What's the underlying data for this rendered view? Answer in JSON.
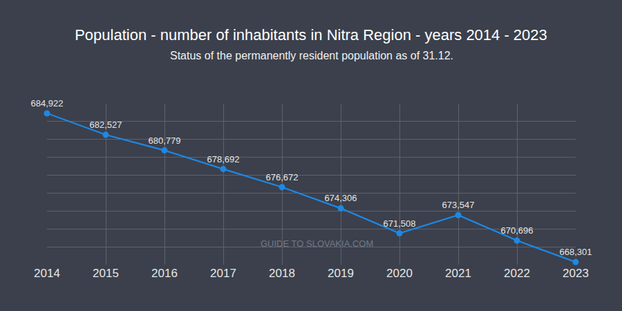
{
  "chart_data": {
    "type": "line",
    "title": "Population - number of inhabitants in Nitra Region - years 2014 - 2023",
    "subtitle": "Status of the permanently resident population as of 31.12.",
    "annotations": [
      "GUIDE TO SLOVAKIA.COM"
    ],
    "x": [
      2014,
      2015,
      2016,
      2017,
      2018,
      2019,
      2020,
      2021,
      2022,
      2023
    ],
    "values": [
      684922,
      682527,
      680779,
      678692,
      676672,
      674306,
      671508,
      673547,
      670696,
      668301
    ],
    "value_labels": [
      "684,922",
      "682,527",
      "680,779",
      "678,692",
      "676,672",
      "674,306",
      "671,508",
      "673,547",
      "670,696",
      "668,301"
    ],
    "color": "#1e88e5",
    "marker": "circle",
    "line_style": "solid",
    "xlim": [
      2014,
      2023
    ],
    "xticks": [
      2014,
      2015,
      2016,
      2017,
      2018,
      2019,
      2020,
      2021,
      2022,
      2023
    ],
    "ylim": [
      668000,
      686000
    ],
    "yticks": [
      668000,
      670000,
      672000,
      674000,
      676000,
      678000,
      680000,
      682000,
      684000,
      686000
    ],
    "grid": true,
    "data_labels": true,
    "tick_labels": "x"
  }
}
